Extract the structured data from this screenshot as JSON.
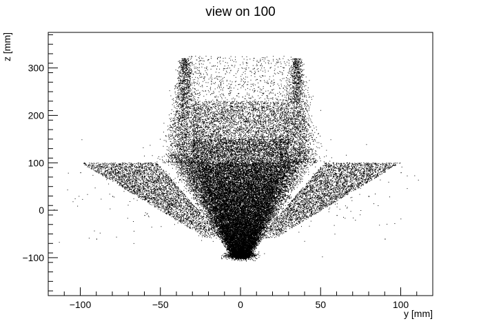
{
  "chart_data": {
    "type": "scatter",
    "title": "view on 100",
    "xlabel": "y [mm]",
    "ylabel": "z [mm]",
    "xlim": [
      -120,
      120
    ],
    "ylim": [
      -180,
      375
    ],
    "x_ticks": [
      -100,
      -50,
      0,
      50,
      100
    ],
    "y_ticks": [
      -100,
      0,
      100,
      200,
      300
    ],
    "x_tick_labels": [
      "−100",
      "−50",
      "0",
      "50",
      "100"
    ],
    "y_tick_labels": [
      "−100",
      "0",
      "100",
      "200",
      "300"
    ],
    "grid": false,
    "legend": "none",
    "marker_color": "#000000",
    "points": [
      [
        -35,
        320
      ],
      [
        35,
        320
      ],
      [
        -35,
        100
      ],
      [
        35,
        100
      ],
      [
        -30,
        220
      ],
      [
        30,
        220
      ],
      [
        -30,
        150
      ],
      [
        30,
        150
      ],
      [
        -15,
        210
      ],
      [
        15,
        210
      ],
      [
        0,
        200
      ],
      [
        -20,
        140
      ],
      [
        20,
        140
      ],
      [
        0,
        130
      ],
      [
        0,
        115
      ],
      [
        0,
        100
      ],
      [
        -20,
        95
      ],
      [
        20,
        95
      ],
      [
        -40,
        80
      ],
      [
        40,
        80
      ],
      [
        -55,
        60
      ],
      [
        55,
        60
      ],
      [
        -70,
        70
      ],
      [
        70,
        70
      ],
      [
        -100,
        80
      ],
      [
        100,
        80
      ],
      [
        -95,
        95
      ],
      [
        95,
        95
      ],
      [
        -30,
        60
      ],
      [
        30,
        60
      ],
      [
        -15,
        50
      ],
      [
        15,
        50
      ],
      [
        0,
        40
      ],
      [
        -25,
        20
      ],
      [
        25,
        20
      ],
      [
        0,
        0
      ],
      [
        -18,
        -20
      ],
      [
        18,
        -20
      ],
      [
        -10,
        -50
      ],
      [
        10,
        -50
      ],
      [
        -5,
        -80
      ],
      [
        5,
        -80
      ],
      [
        -3,
        -100
      ],
      [
        3,
        -100
      ],
      [
        0,
        -100
      ],
      [
        -45,
        20
      ],
      [
        45,
        20
      ],
      [
        -60,
        -10
      ],
      [
        60,
        -10
      ],
      [
        -80,
        30
      ],
      [
        80,
        30
      ],
      [
        -90,
        -60
      ],
      [
        90,
        -60
      ]
    ]
  }
}
